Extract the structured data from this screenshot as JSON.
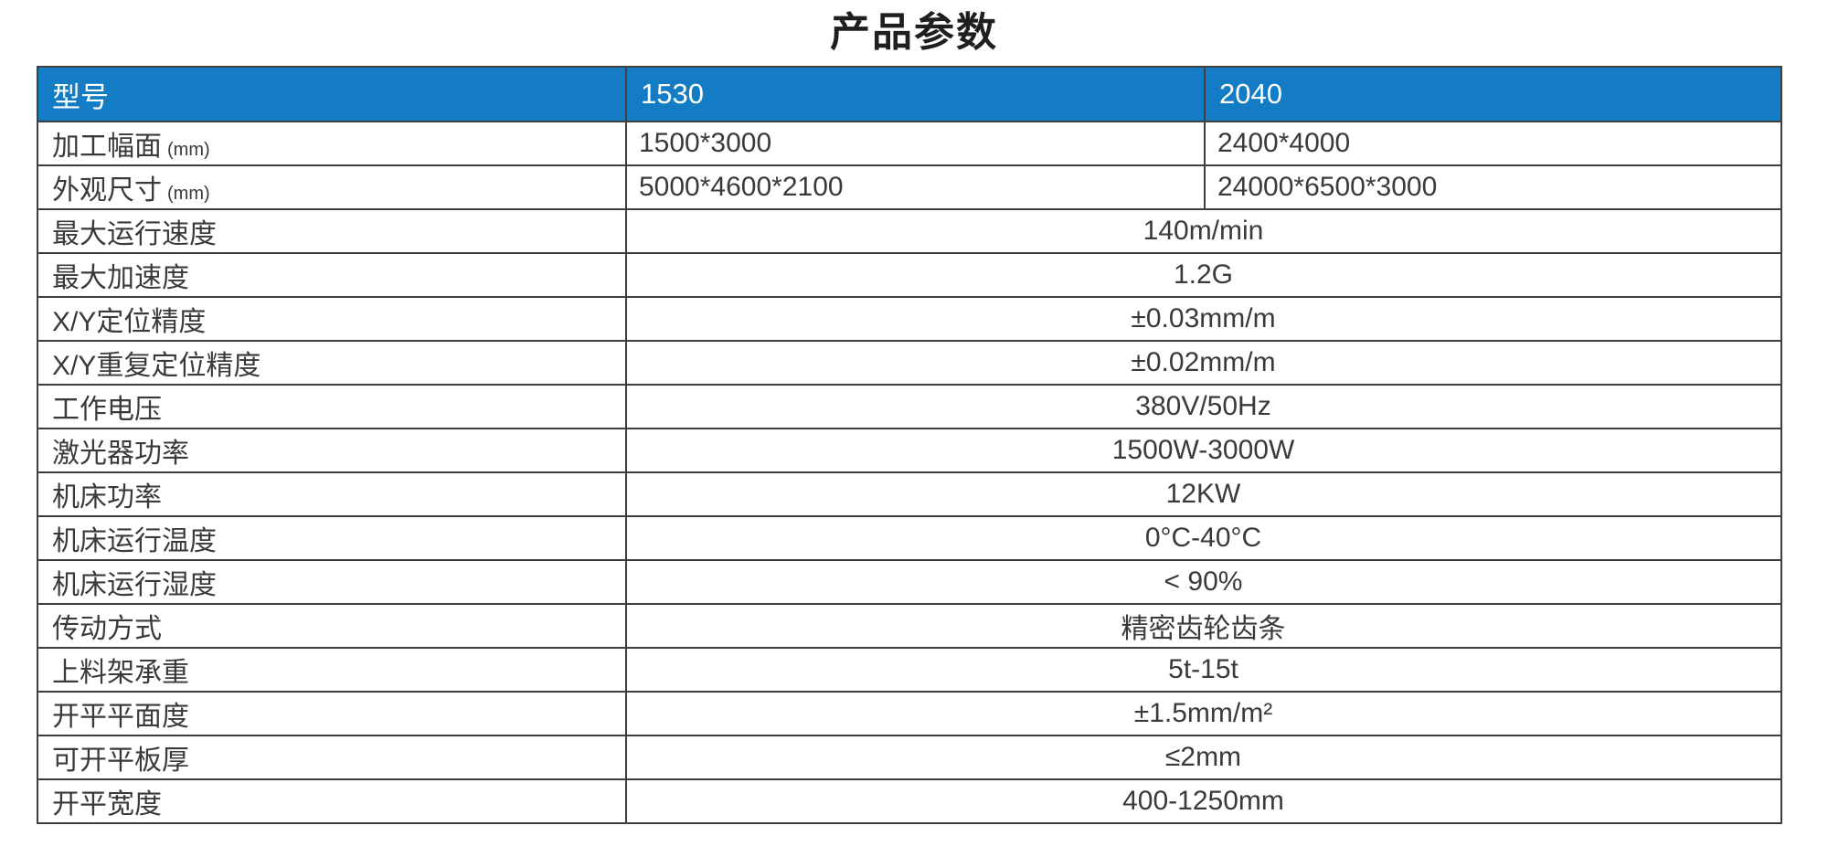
{
  "title": "产品参数",
  "colors": {
    "header_bg": "#137cc4",
    "header_text": "#ffffff",
    "border": "#3f3f3f",
    "text": "#3a3a3a"
  },
  "table": {
    "header": {
      "model_label": "型号",
      "models": [
        "1530",
        "2040"
      ]
    },
    "split_rows": [
      {
        "label": "加工幅面",
        "label_suffix": "(mm)",
        "values": [
          "1500*3000",
          "2400*4000"
        ]
      },
      {
        "label": "外观尺寸",
        "label_suffix": "(mm)",
        "values": [
          "5000*4600*2100",
          "24000*6500*3000"
        ]
      }
    ],
    "merged_rows": [
      {
        "label": "最大运行速度",
        "value": "140m/min"
      },
      {
        "label": "最大加速度",
        "value": "1.2G"
      },
      {
        "label": "X/Y定位精度",
        "value": "±0.03mm/m"
      },
      {
        "label": "X/Y重复定位精度",
        "value": "±0.02mm/m"
      },
      {
        "label": "工作电压",
        "value": "380V/50Hz"
      },
      {
        "label": "激光器功率",
        "value": "1500W-3000W"
      },
      {
        "label": "机床功率",
        "value": "12KW"
      },
      {
        "label": "机床运行温度",
        "value": "0°C-40°C"
      },
      {
        "label": "机床运行湿度",
        "value": "< 90%"
      },
      {
        "label": "传动方式",
        "value": "精密齿轮齿条"
      },
      {
        "label": "上料架承重",
        "value": "5t-15t"
      },
      {
        "label": "开平平面度",
        "value": "±1.5mm/m²"
      },
      {
        "label": "可开平板厚",
        "value": "≤2mm"
      },
      {
        "label": "开平宽度",
        "value": "400-1250mm"
      }
    ]
  }
}
